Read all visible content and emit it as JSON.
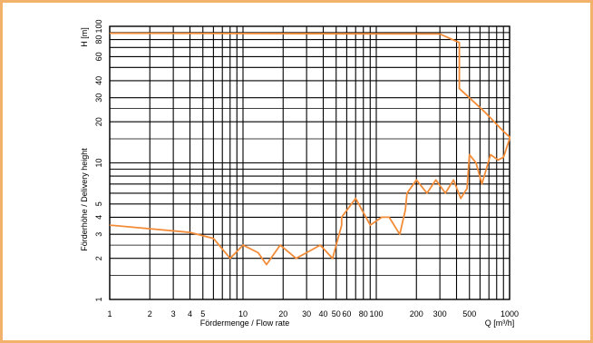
{
  "chart_data": {
    "type": "line",
    "title": "",
    "xscale": "log",
    "yscale": "log",
    "xlim": [
      1,
      1000
    ],
    "ylim": [
      1,
      100
    ],
    "grid": true,
    "xlabel": "Fördermenge / Flow rate",
    "xunit_label": "Q [m³/h]",
    "ylabel": "Förderhöhe / Delivery height",
    "yunit_label": "H [m]",
    "xticks": [
      1,
      2,
      3,
      4,
      5,
      10,
      20,
      30,
      40,
      50,
      60,
      80,
      100,
      200,
      300,
      500,
      1000
    ],
    "xtick_labels": [
      "1",
      "2",
      "3",
      "4",
      "5",
      "10",
      "20",
      "30",
      "40",
      "50",
      "60",
      "80",
      "100",
      "200",
      "300",
      "500",
      "1000"
    ],
    "yticks": [
      1,
      2,
      3,
      4,
      5,
      10,
      20,
      30,
      40,
      60,
      80,
      100
    ],
    "ytick_labels": [
      "1",
      "2",
      "3",
      "4",
      "5",
      "10",
      "20",
      "30",
      "40",
      "60",
      "80",
      "100"
    ],
    "line_color": "#f28c38",
    "series": [
      {
        "name": "",
        "points": [
          [
            1,
            89
          ],
          [
            300,
            88
          ],
          [
            420,
            76
          ],
          [
            420,
            35
          ],
          [
            640,
            24
          ],
          [
            900,
            17
          ],
          [
            1000,
            15.5
          ],
          [
            1000,
            15
          ],
          [
            900,
            11
          ],
          [
            820,
            10.5
          ],
          [
            720,
            11.5
          ],
          [
            620,
            7
          ],
          [
            560,
            10
          ],
          [
            500,
            11.5
          ],
          [
            480,
            6.5
          ],
          [
            430,
            5.5
          ],
          [
            380,
            7.5
          ],
          [
            330,
            6
          ],
          [
            280,
            7.5
          ],
          [
            240,
            6
          ],
          [
            200,
            7.5
          ],
          [
            170,
            6
          ],
          [
            165,
            4.5
          ],
          [
            150,
            3
          ],
          [
            125,
            4
          ],
          [
            110,
            4
          ],
          [
            90,
            3.5
          ],
          [
            70,
            5.5
          ],
          [
            55,
            4
          ],
          [
            55,
            3.5
          ],
          [
            47,
            2
          ],
          [
            38,
            2.5
          ],
          [
            30,
            2.2
          ],
          [
            25,
            2
          ],
          [
            19,
            2.5
          ],
          [
            15,
            1.8
          ],
          [
            13,
            2.2
          ],
          [
            10,
            2.5
          ],
          [
            8,
            2
          ],
          [
            6,
            2.8
          ],
          [
            4,
            3.1
          ],
          [
            1,
            3.5
          ]
        ]
      }
    ]
  }
}
